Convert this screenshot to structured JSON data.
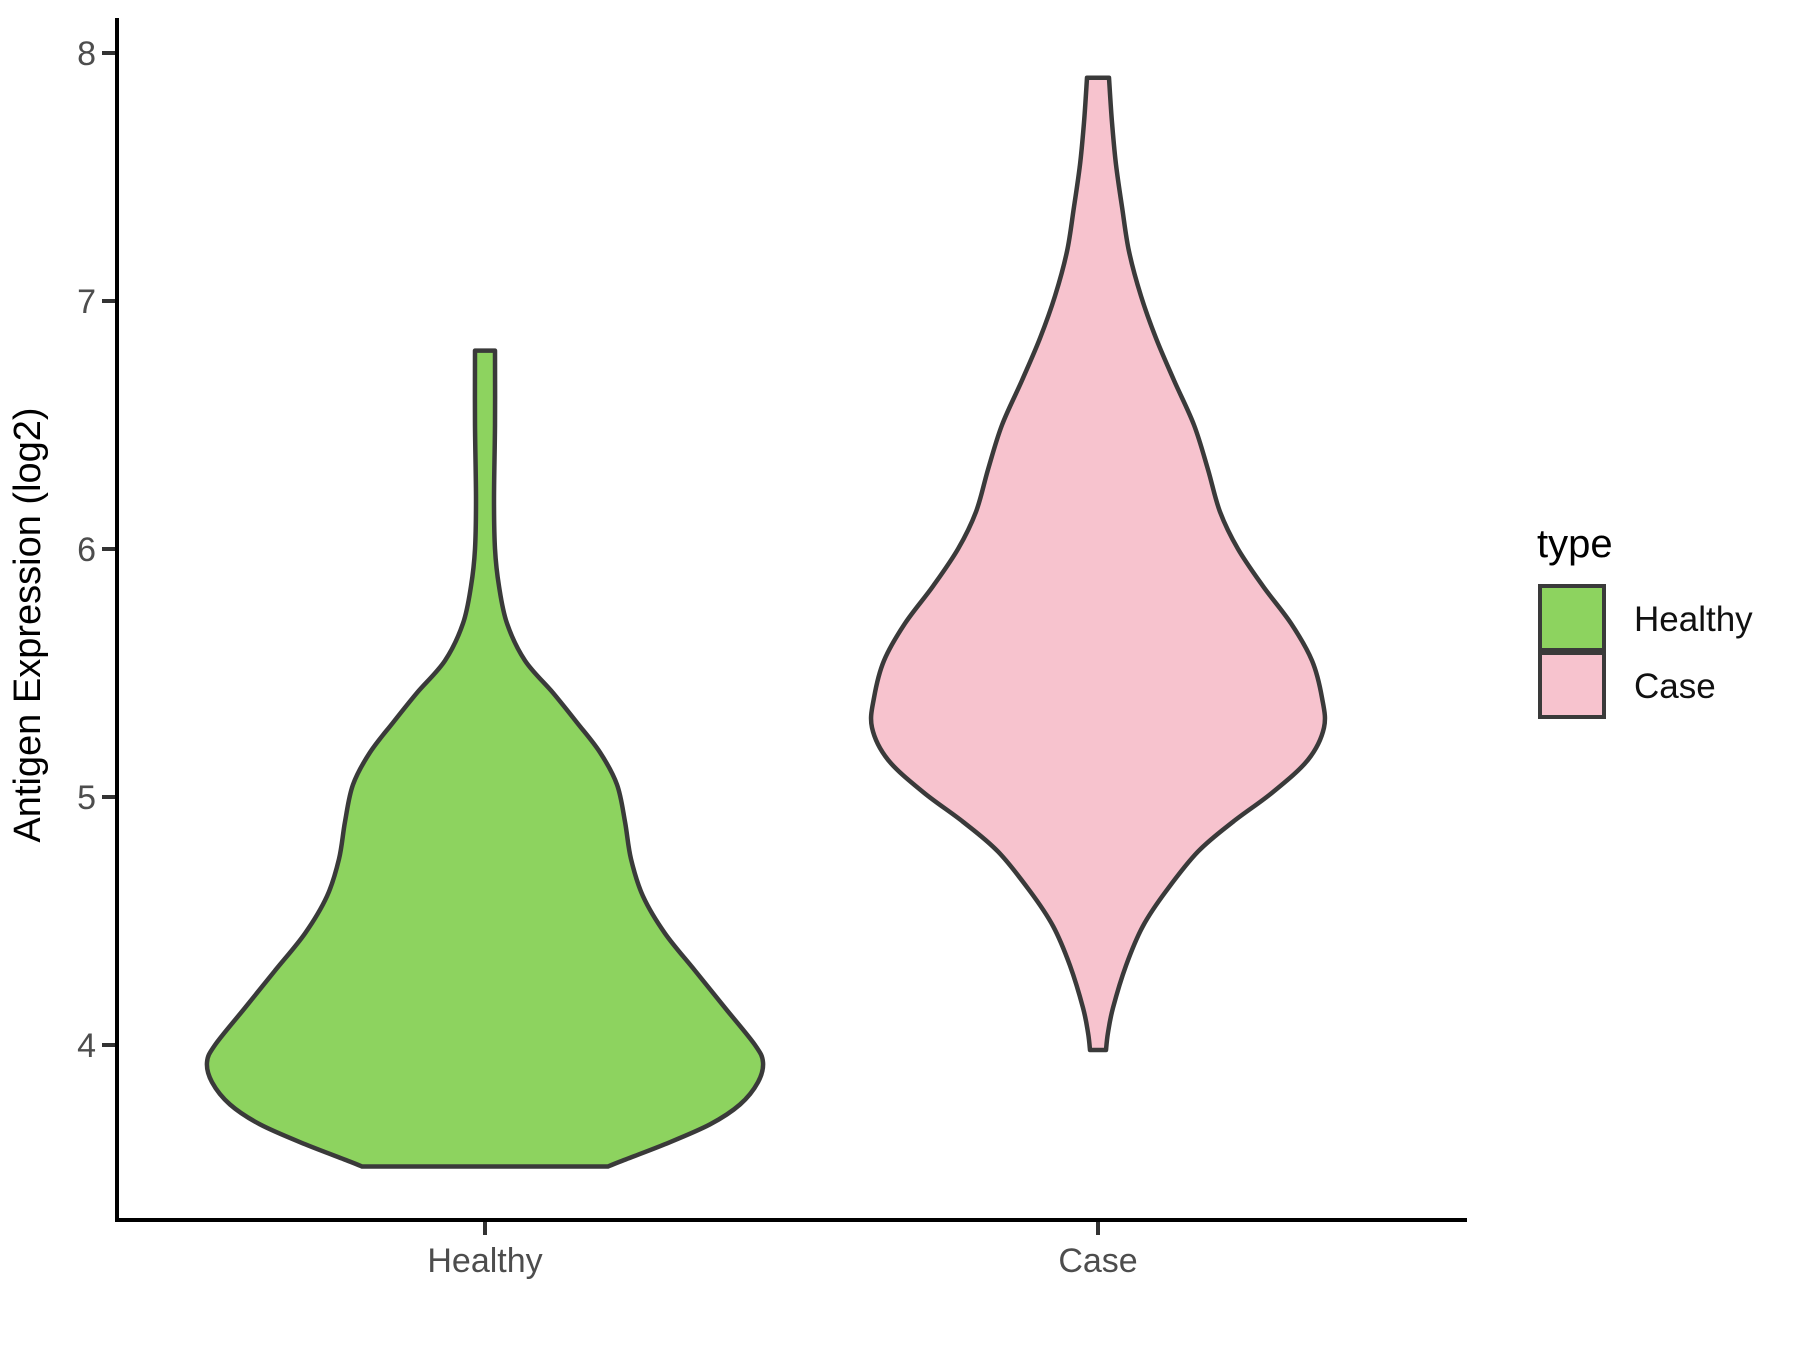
{
  "chart_data": {
    "type": "violin",
    "title": "",
    "xlabel": "",
    "ylabel": "Antigen Expression (log2)",
    "categories": [
      "Healthy",
      "Case"
    ],
    "yticks": [
      "8",
      "7",
      "6",
      "5",
      "4"
    ],
    "ylim_shown": [
      3.3,
      8.05
    ],
    "grid": "off",
    "legend": {
      "title": "type",
      "position": "right",
      "entries": [
        {
          "label": "Healthy",
          "color": "#8DD35F"
        },
        {
          "label": "Case",
          "color": "#F7C3CE"
        }
      ]
    },
    "outline_color": "#3A3A3A",
    "axis_color": "#000000",
    "tick_label_color": "#4D4D4D",
    "series": [
      {
        "name": "Healthy",
        "color": "#8DD35F",
        "value_range": [
          3.51,
          6.8
        ],
        "flat_top": true,
        "flat_bottom": true,
        "profile": [
          [
            6.8,
            10
          ],
          [
            6.5,
            10
          ],
          [
            6.2,
            9
          ],
          [
            6.0,
            10
          ],
          [
            5.85,
            14
          ],
          [
            5.7,
            22
          ],
          [
            5.55,
            40
          ],
          [
            5.42,
            68
          ],
          [
            5.3,
            92
          ],
          [
            5.18,
            115
          ],
          [
            5.05,
            132
          ],
          [
            4.9,
            140
          ],
          [
            4.75,
            146
          ],
          [
            4.6,
            158
          ],
          [
            4.45,
            180
          ],
          [
            4.3,
            210
          ],
          [
            4.15,
            240
          ],
          [
            4.0,
            270
          ],
          [
            3.93,
            278
          ],
          [
            3.85,
            273
          ],
          [
            3.76,
            255
          ],
          [
            3.68,
            225
          ],
          [
            3.6,
            180
          ],
          [
            3.53,
            135
          ],
          [
            3.51,
            123
          ]
        ]
      },
      {
        "name": "Case",
        "color": "#F7C3CE",
        "value_range": [
          3.98,
          7.9
        ],
        "flat_top": true,
        "flat_bottom": true,
        "profile": [
          [
            7.9,
            11
          ],
          [
            7.72,
            14
          ],
          [
            7.55,
            18
          ],
          [
            7.38,
            24
          ],
          [
            7.2,
            31
          ],
          [
            7.02,
            43
          ],
          [
            6.85,
            58
          ],
          [
            6.68,
            76
          ],
          [
            6.5,
            96
          ],
          [
            6.32,
            110
          ],
          [
            6.15,
            122
          ],
          [
            6.0,
            140
          ],
          [
            5.85,
            165
          ],
          [
            5.7,
            193
          ],
          [
            5.55,
            214
          ],
          [
            5.4,
            224
          ],
          [
            5.28,
            226
          ],
          [
            5.15,
            210
          ],
          [
            5.02,
            175
          ],
          [
            4.9,
            135
          ],
          [
            4.78,
            100
          ],
          [
            4.62,
            68
          ],
          [
            4.48,
            45
          ],
          [
            4.32,
            28
          ],
          [
            4.15,
            15
          ],
          [
            4.05,
            10
          ],
          [
            3.98,
            8
          ]
        ]
      }
    ]
  }
}
